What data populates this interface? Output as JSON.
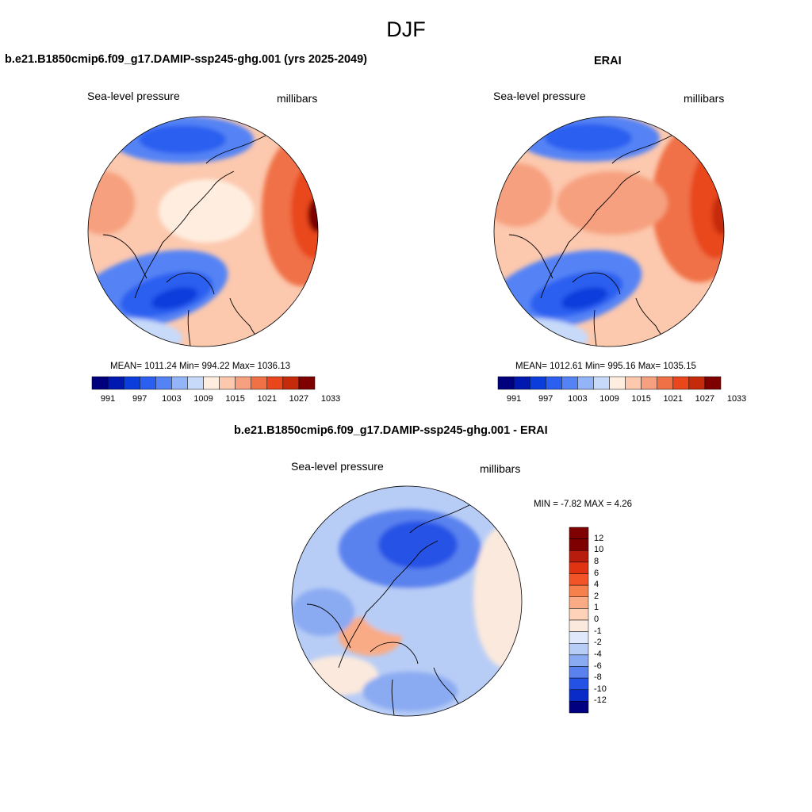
{
  "figure": {
    "title": "DJF"
  },
  "panels": [
    {
      "title": "b.e21.B1850cmip6.f09_g17.DAMIP-ssp245-ghg.001 (yrs 2025-2049)",
      "variable": "Sea-level pressure",
      "units": "millibars",
      "stats": "MEAN= 1011.24   Min= 994.22   Max= 1036.13",
      "colorbar_ticks": [
        "991",
        "997",
        "1003",
        "1009",
        "1015",
        "1021",
        "1027",
        "1033"
      ]
    },
    {
      "title": "ERAI",
      "variable": "Sea-level pressure",
      "units": "millibars",
      "stats": "MEAN= 1012.61   Min= 995.16   Max= 1035.15",
      "colorbar_ticks": [
        "991",
        "997",
        "1003",
        "1009",
        "1015",
        "1021",
        "1027",
        "1033"
      ]
    },
    {
      "title": "b.e21.B1850cmip6.f09_g17.DAMIP-ssp245-ghg.001 - ERAI",
      "variable": "Sea-level pressure",
      "units": "millibars",
      "stats": "MIN =  -7.82 MAX =   4.26",
      "colorbar_ticks": [
        "12",
        "10",
        "8",
        "6",
        "4",
        "2",
        "1",
        "0",
        "-1",
        "-2",
        "-4",
        "-6",
        "-8",
        "-10",
        "-12"
      ]
    }
  ],
  "colors": {
    "abs_scale": [
      "#00007f",
      "#0017b0",
      "#0a3ddc",
      "#2a5ff0",
      "#5583f5",
      "#93b4f8",
      "#c8daf9",
      "#ffeee0",
      "#fcc8ae",
      "#f6a07f",
      "#f07146",
      "#e9461b",
      "#c52a0a",
      "#7f0000"
    ],
    "diff_scale": [
      "#7f0000",
      "#b71c0c",
      "#e03311",
      "#f25428",
      "#f6814d",
      "#f9ab85",
      "#fdd2b9",
      "#fbe9dd",
      "#dfe9fb",
      "#b8cdf6",
      "#8aaaf2",
      "#5a82ee",
      "#2552e6",
      "#0a2bc8",
      "#000080"
    ],
    "coastline": "#000000"
  }
}
